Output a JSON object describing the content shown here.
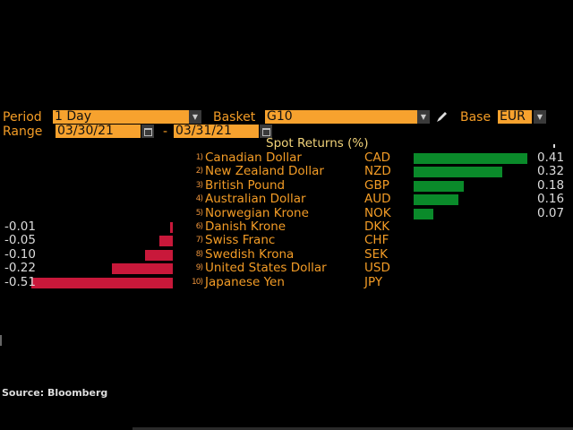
{
  "controls": {
    "period_label": "Period",
    "period_value": "1 Day",
    "basket_label": "Basket",
    "basket_value": "G10",
    "base_label": "Base",
    "base_value": "EUR",
    "range_label": "Range",
    "range_start": "03/30/21",
    "range_sep": "-",
    "range_end": "03/31/21"
  },
  "chart_data": {
    "type": "bar",
    "title": "Spot Returns (%)",
    "categories": [
      "Canadian Dollar",
      "New Zealand Dollar",
      "British Pound",
      "Australian Dollar",
      "Norwegian Krone",
      "Danish Krone",
      "Swiss Franc",
      "Swedish Krona",
      "United States Dollar",
      "Japanese Yen"
    ],
    "codes": [
      "CAD",
      "NZD",
      "GBP",
      "AUD",
      "NOK",
      "DKK",
      "CHF",
      "SEK",
      "USD",
      "JPY"
    ],
    "values": [
      0.41,
      0.32,
      0.18,
      0.16,
      0.07,
      -0.01,
      -0.05,
      -0.1,
      -0.22,
      -0.51
    ],
    "labels": [
      "0.41",
      "0.32",
      "0.18",
      "0.16",
      "0.07",
      "-0.01",
      "-0.05",
      "-0.10",
      "-0.22",
      "-0.51"
    ],
    "colors": {
      "positive": "#0a8a2a",
      "negative": "#c8183a"
    }
  },
  "footer": {
    "source": "Source: Bloomberg"
  }
}
